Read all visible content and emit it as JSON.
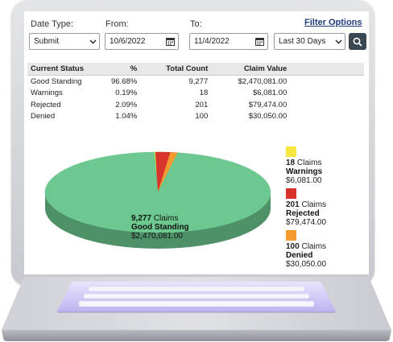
{
  "filters": {
    "date_type_label": "Date Type:",
    "from_label": "From:",
    "to_label": "To:",
    "filter_options_link": "Filter Options",
    "date_type_value": "Submit",
    "from_value": "10/6/2022",
    "to_value": "11/4/2022",
    "range_value": "Last 30 Days"
  },
  "table": {
    "headers": [
      "Current Status",
      "%",
      "Total Count",
      "Claim Value"
    ],
    "rows": [
      [
        "Good Standing",
        "96.68%",
        "9,277",
        "$2,470,081.00"
      ],
      [
        "Warnings",
        "0.19%",
        "18",
        "$6,081.00"
      ],
      [
        "Rejected",
        "2.09%",
        "201",
        "$79,474.00"
      ],
      [
        "Denied",
        "1.04%",
        "100",
        "$30,050.00"
      ]
    ]
  },
  "legend": {
    "claims_word": "Claims",
    "items": [
      {
        "count": "18",
        "name": "Warnings",
        "value": "$6,081.00",
        "color": "#f5e642"
      },
      {
        "count": "201",
        "name": "Rejected",
        "value": "$79,474.00",
        "color": "#d9342b"
      },
      {
        "count": "100",
        "name": "Denied",
        "value": "$30,050.00",
        "color": "#f59a2f"
      }
    ]
  },
  "pie_label": {
    "count": "9,277",
    "claims_word": "Claims",
    "name": "Good Standing",
    "value": "$2,470,081.00"
  },
  "chart_data": {
    "type": "pie",
    "title": "",
    "categories": [
      "Good Standing",
      "Warnings",
      "Rejected",
      "Denied"
    ],
    "values": [
      9277,
      18,
      201,
      100
    ],
    "percentages": [
      96.68,
      0.19,
      2.09,
      1.04
    ],
    "colors": [
      "#6cc88f",
      "#f5e642",
      "#d9342b",
      "#f59a2f"
    ],
    "style": "3d",
    "legend_position": "right"
  }
}
